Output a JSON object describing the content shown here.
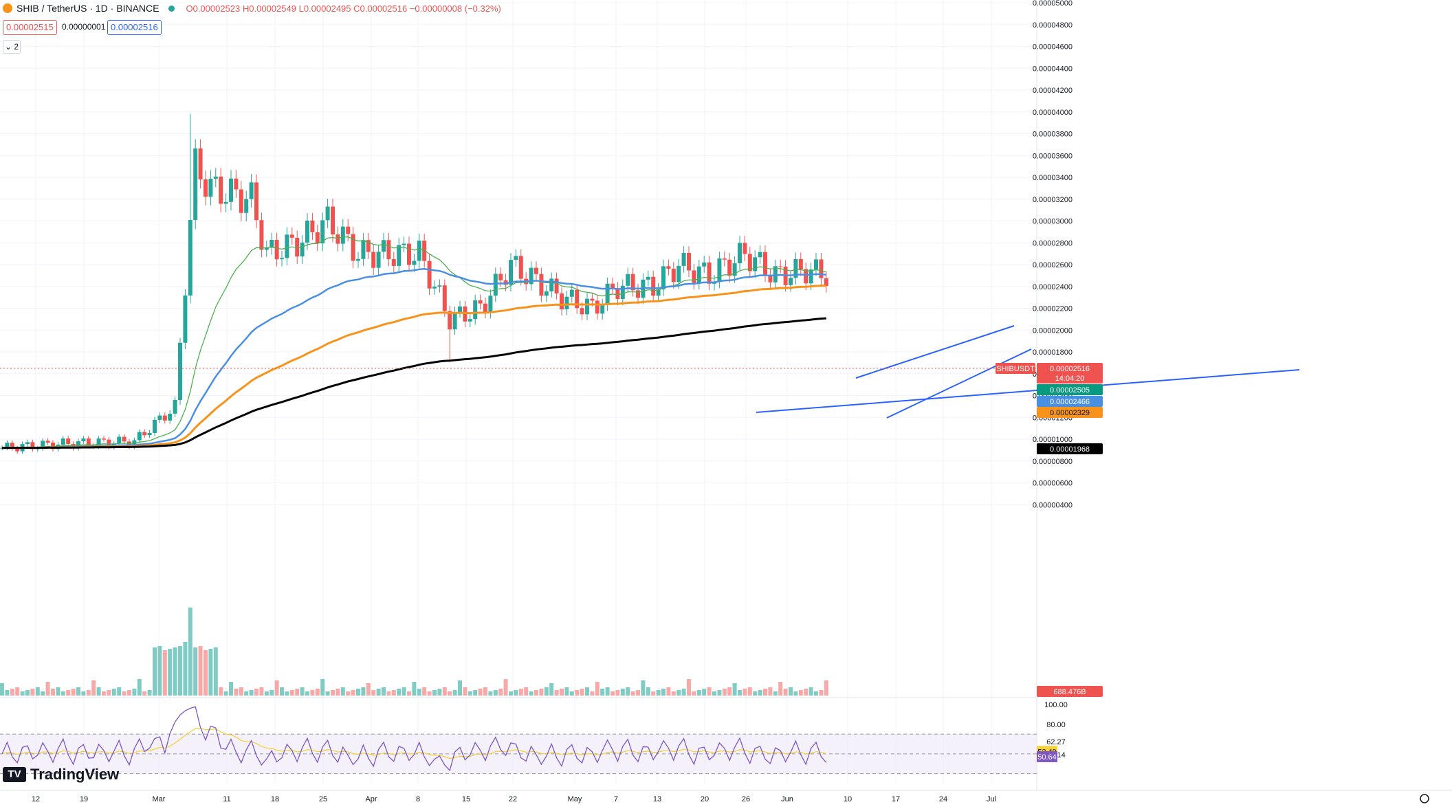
{
  "header": {
    "symbol": "SHIB / TetherUS · 1D · BINANCE",
    "open": "O0.00002523",
    "high": "H0.00002549",
    "low": "L0.00002495",
    "close": "C0.00002516",
    "change": "−0.00000008 (−0.32%)"
  },
  "trade": {
    "sell": "0.00002515",
    "spread": "0.00000001",
    "buy": "0.00002516"
  },
  "indicators_toggle": "2",
  "logo": "TradingView",
  "price_tags": {
    "symbol": "SHIBUSDT",
    "last": "0.00002516",
    "countdown": "14:04:20",
    "ema_fast": "0.00002505",
    "ema_mid": "0.00002466",
    "ema_orange": "0.00002329",
    "ema_black": "0.00001968",
    "volume": "688.476B"
  },
  "rsi_tags": {
    "rsi_ma": "52.49",
    "rsi": "50.64"
  },
  "colors": {
    "up": "#26a69a",
    "down": "#ef5350",
    "ema_blue": "#4a90e2",
    "ema_orange": "#f7931a",
    "ema_black": "#000000",
    "ema_green": "#4caf50",
    "trendline": "#2962ff",
    "rsi_line": "#7e57c2",
    "rsi_ma": "#f5d23c"
  },
  "chart_data": [
    {
      "type": "candlestick",
      "title": "SHIB / TetherUS · 1D · BINANCE",
      "y_labels": [
        "0.00005000",
        "0.00004800",
        "0.00004600",
        "0.00004400",
        "0.00004200",
        "0.00004000",
        "0.00003800",
        "0.00003600",
        "0.00003400",
        "0.00003200",
        "0.00003000",
        "0.00002800",
        "0.00002600",
        "0.00002400",
        "0.00002200",
        "0.00002000",
        "0.00001800",
        "0.00001600",
        "0.00001400",
        "0.00001200",
        "0.00001000",
        "0.00000800",
        "0.00000600",
        "0.00000400"
      ],
      "x_labels": [
        "12",
        "19",
        "Mar",
        "11",
        "18",
        "25",
        "Apr",
        "8",
        "15",
        "22",
        "May",
        "7",
        "13",
        "20",
        "26",
        "Jun",
        "10",
        "17",
        "24",
        "Jul"
      ],
      "ylim": [
        4e-06,
        5e-05
      ],
      "annotations": [
        "ascending support trendline",
        "rising wedge channel"
      ]
    },
    {
      "type": "line",
      "title": "RSI",
      "y_labels": [
        "100.00",
        "80.00",
        "62.27",
        "49.14"
      ],
      "ylim": [
        20,
        100
      ],
      "bands": [
        30,
        70
      ]
    }
  ]
}
